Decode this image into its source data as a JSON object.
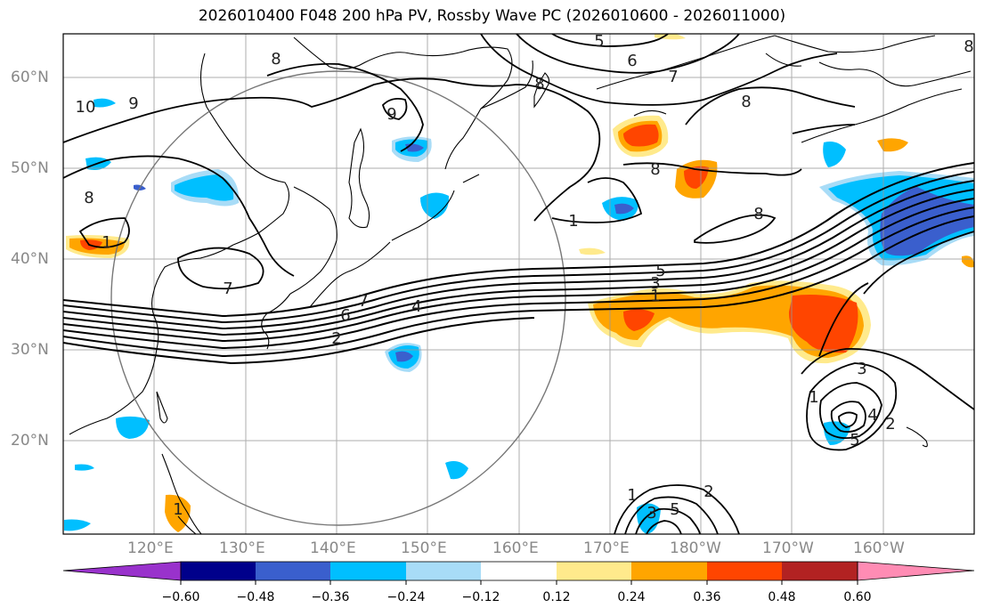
{
  "title": "2026010400 F048 200 hPa PV, Rossby Wave PC (2026010600 - 2026011000)",
  "map": {
    "lon_labels": [
      "120°E",
      "130°E",
      "140°E",
      "150°E",
      "160°E",
      "170°E",
      "180°W",
      "170°W",
      "160°W"
    ],
    "lat_labels": [
      "60°N",
      "50°N",
      "40°N",
      "30°N",
      "20°N"
    ],
    "contour_labels": [
      {
        "text": "5",
        "id": "top5"
      },
      {
        "text": "6",
        "id": "top6"
      },
      {
        "text": "7",
        "id": "top7"
      },
      {
        "text": "8",
        "id": "top8a"
      },
      {
        "text": "8",
        "id": "top8b"
      },
      {
        "text": "8",
        "id": "top8c"
      },
      {
        "text": "10",
        "id": "w10"
      },
      {
        "text": "9",
        "id": "w9"
      },
      {
        "text": "8",
        "id": "w8"
      },
      {
        "text": "9",
        "id": "c9"
      },
      {
        "text": "1",
        "id": "w1"
      },
      {
        "text": "7",
        "id": "w7"
      },
      {
        "text": "6",
        "id": "j6"
      },
      {
        "text": "7",
        "id": "j7"
      },
      {
        "text": "4",
        "id": "j4"
      },
      {
        "text": "2",
        "id": "j2"
      },
      {
        "text": "5",
        "id": "j5"
      },
      {
        "text": "3",
        "id": "j3"
      },
      {
        "text": "1",
        "id": "j1"
      },
      {
        "text": "1",
        "id": "m1"
      },
      {
        "text": "8",
        "id": "m8"
      },
      {
        "text": "8",
        "id": "e8"
      },
      {
        "text": "3",
        "id": "s3"
      },
      {
        "text": "1",
        "id": "s1"
      },
      {
        "text": "4",
        "id": "s4"
      },
      {
        "text": "5",
        "id": "s5"
      },
      {
        "text": "2",
        "id": "s2"
      },
      {
        "text": "1",
        "id": "b1"
      },
      {
        "text": "3",
        "id": "b3"
      },
      {
        "text": "5",
        "id": "b5"
      },
      {
        "text": "2",
        "id": "b2"
      },
      {
        "text": "1",
        "id": "p1"
      },
      {
        "text": "8",
        "id": "ne8"
      }
    ]
  },
  "colorbar": {
    "ticks": [
      "−0.60",
      "−0.48",
      "−0.36",
      "−0.24",
      "−0.12",
      "0.12",
      "0.24",
      "0.36",
      "0.48",
      "0.60"
    ],
    "colors": [
      "#9932cc",
      "#00008b",
      "#3a5fcd",
      "#00bfff",
      "#a8dcf7",
      "#ffffff",
      "#ffea8c",
      "#ffa500",
      "#ff4500",
      "#b22222",
      "#ff8cb4"
    ]
  }
}
